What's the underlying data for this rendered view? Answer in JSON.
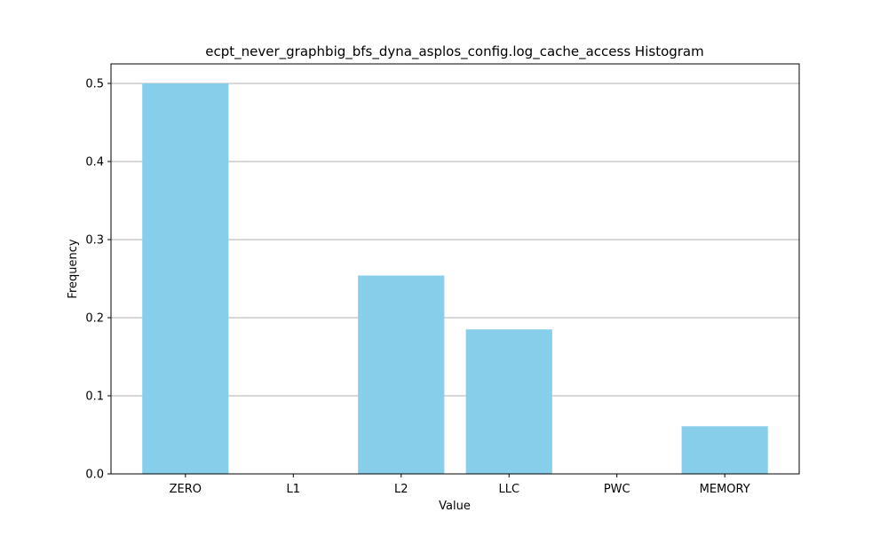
{
  "chart_data": {
    "type": "bar",
    "title": "ecpt_never_graphbig_bfs_dyna_asplos_config.log_cache_access Histogram",
    "xlabel": "Value",
    "ylabel": "Frequency",
    "categories": [
      "ZERO",
      "L1",
      "L2",
      "LLC",
      "PWC",
      "MEMORY"
    ],
    "values": [
      0.5,
      0.0,
      0.254,
      0.185,
      0.0,
      0.061
    ],
    "ylim": [
      0,
      0.525
    ],
    "yticks": [
      0.0,
      0.1,
      0.2,
      0.3,
      0.4,
      0.5
    ],
    "ytick_labels": [
      "0.0",
      "0.1",
      "0.2",
      "0.3",
      "0.4",
      "0.5"
    ],
    "grid": "y",
    "bar_color": "#87ceeb",
    "grid_color": "#b0b0b0"
  }
}
